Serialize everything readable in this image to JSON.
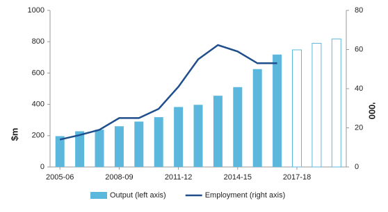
{
  "chart_data": {
    "type": "bar-line",
    "categories": [
      "2005-06",
      null,
      null,
      "2008-09",
      null,
      null,
      "2011-12",
      null,
      null,
      "2014-15",
      null,
      null,
      "2017-18",
      null,
      null
    ],
    "series": [
      {
        "name": "Output (left axis)",
        "type": "bar",
        "color": "#5bb8dc",
        "values": [
          197,
          228,
          238,
          260,
          290,
          318,
          383,
          397,
          455,
          510,
          625,
          718,
          748,
          790,
          818
        ],
        "outline": [
          false,
          false,
          false,
          false,
          false,
          false,
          false,
          false,
          false,
          false,
          false,
          false,
          true,
          true,
          true
        ]
      },
      {
        "name": "Employment (right axis)",
        "type": "line",
        "axis": "y2",
        "color": "#1f4e8c",
        "values": [
          14,
          16.3,
          19,
          25,
          25,
          29.7,
          41,
          55,
          62.3,
          59,
          53,
          53,
          null,
          null,
          null
        ]
      }
    ],
    "y_label": "$m",
    "y2_label": "'000",
    "ylim": [
      0,
      1000
    ],
    "yticks": [
      0,
      200,
      400,
      600,
      800,
      1000
    ],
    "y2lim": [
      0,
      80
    ],
    "y2ticks": [
      0,
      20,
      40,
      60,
      80
    ],
    "grid": false,
    "legend": "bottom"
  }
}
